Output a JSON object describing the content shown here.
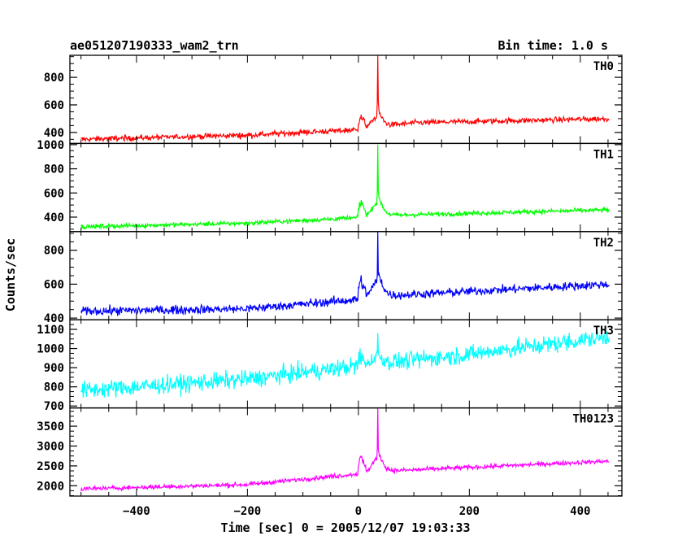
{
  "chart_data": {
    "type": "line",
    "title": "ae051207190333_wam2_trn",
    "subtitle": "Bin time: 1.0 s",
    "xlabel": "Time [sec] 0 = 2005/12/07 19:03:33",
    "ylabel": "Counts/sec",
    "xlim": [
      -520,
      475
    ],
    "x_ticks": [
      -400,
      -200,
      0,
      200,
      400
    ],
    "x_range_data": [
      -500,
      452
    ],
    "burst_time": 35,
    "grid": false,
    "panels": [
      {
        "name": "TH0",
        "color": "#ff0000",
        "ylim": [
          320,
          960
        ],
        "yticks": [
          400,
          600,
          800
        ],
        "series": {
          "baseline": [
            [
              -500,
              350
            ],
            [
              -200,
              380
            ],
            [
              0,
              420
            ],
            [
              100,
              470
            ],
            [
              450,
              500
            ]
          ],
          "noise": 20,
          "burst_peak": 960,
          "pre_bump": 530,
          "min": 330
        }
      },
      {
        "name": "TH1",
        "color": "#00ff00",
        "ylim": [
          280,
          1010
        ],
        "yticks": [
          400,
          600,
          800,
          1000
        ],
        "series": {
          "baseline": [
            [
              -500,
              320
            ],
            [
              -200,
              350
            ],
            [
              0,
              395
            ],
            [
              100,
              420
            ],
            [
              450,
              460
            ]
          ],
          "noise": 18,
          "burst_peak": 1000,
          "pre_bump": 540,
          "min": 300
        }
      },
      {
        "name": "TH2",
        "color": "#0000ff",
        "ylim": [
          390,
          910
        ],
        "yticks": [
          400,
          600,
          800
        ],
        "series": {
          "baseline": [
            [
              -500,
              440
            ],
            [
              -200,
              455
            ],
            [
              0,
              510
            ],
            [
              100,
              540
            ],
            [
              450,
              600
            ]
          ],
          "noise": 25,
          "burst_peak": 910,
          "pre_bump": 640,
          "min": 410
        }
      },
      {
        "name": "TH3",
        "color": "#00ffff",
        "ylim": [
          690,
          1150
        ],
        "yticks": [
          700,
          800,
          900,
          1000,
          1100
        ],
        "series": {
          "baseline": [
            [
              -500,
              780
            ],
            [
              -200,
              840
            ],
            [
              0,
              910
            ],
            [
              200,
              970
            ],
            [
              450,
              1060
            ]
          ],
          "noise": 45,
          "burst_peak": 1080,
          "pre_bump": 960,
          "min": 700
        }
      },
      {
        "name": "TH0123",
        "color": "#ff00ff",
        "ylim": [
          1740,
          3960
        ],
        "yticks": [
          2000,
          2500,
          3000,
          3500
        ],
        "series": {
          "baseline": [
            [
              -500,
              1920
            ],
            [
              -200,
              2030
            ],
            [
              0,
              2300
            ],
            [
              100,
              2400
            ],
            [
              450,
              2620
            ]
          ],
          "noise": 55,
          "burst_peak": 3960,
          "pre_bump": 2750,
          "min": 1850
        }
      }
    ]
  }
}
